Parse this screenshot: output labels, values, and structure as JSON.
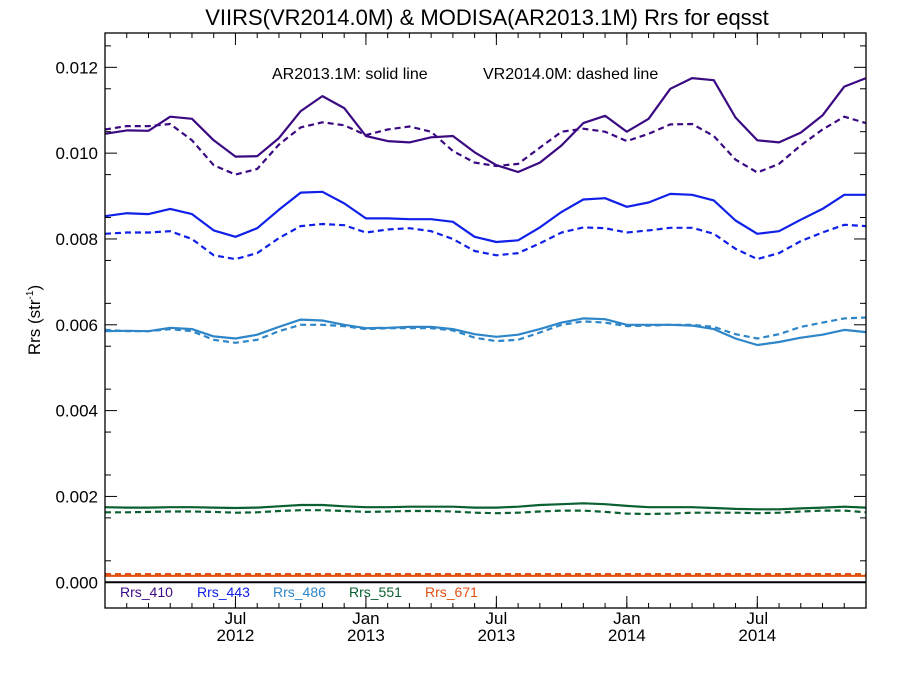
{
  "chart_data": {
    "type": "line",
    "title": "VIIRS(VR2014.0M) & MODISA(AR2013.1M)  Rrs for eqsst",
    "ylabel_main": "Rrs (str",
    "ylabel_sup": "-1",
    "ylabel_close": ")",
    "annotation_solid": "AR2013.1M: solid line",
    "annotation_dashed": "VR2014.0M: dashed line",
    "x_start": "2012-01",
    "months_step": 1,
    "xlim": [
      "2012-01",
      "2014-12"
    ],
    "ylim": [
      -0.0006,
      0.0128
    ],
    "yticks": [
      {
        "value": 0.0,
        "label": "0.000"
      },
      {
        "value": 0.002,
        "label": "0.002"
      },
      {
        "value": 0.004,
        "label": "0.004"
      },
      {
        "value": 0.006,
        "label": "0.006"
      },
      {
        "value": 0.008,
        "label": "0.008"
      },
      {
        "value": 0.01,
        "label": "0.010"
      },
      {
        "value": 0.012,
        "label": "0.012"
      }
    ],
    "xticks": [
      {
        "date": "2012-07",
        "month": "Jul",
        "year": "2012"
      },
      {
        "date": "2013-01",
        "month": "Jan",
        "year": "2013"
      },
      {
        "date": "2013-07",
        "month": "Jul",
        "year": "2013"
      },
      {
        "date": "2014-01",
        "month": "Jan",
        "year": "2014"
      },
      {
        "date": "2014-07",
        "month": "Jul",
        "year": "2014"
      }
    ],
    "zero_line": true,
    "series": [
      {
        "name": "Rrs_410",
        "color": "#3b0a82",
        "solid": [
          0.01045,
          0.01053,
          0.01052,
          0.01085,
          0.0108,
          0.0103,
          0.00992,
          0.00993,
          0.01035,
          0.01098,
          0.01133,
          0.01105,
          0.0104,
          0.01028,
          0.01025,
          0.01037,
          0.0104,
          0.01002,
          0.00972,
          0.00956,
          0.00978,
          0.01018,
          0.0107,
          0.01087,
          0.0105,
          0.0108,
          0.0115,
          0.01175,
          0.0117,
          0.01083,
          0.0103,
          0.01025,
          0.01048,
          0.01088,
          0.01155,
          0.01175
        ],
        "dashed": [
          0.01055,
          0.01063,
          0.01063,
          0.01068,
          0.0103,
          0.00972,
          0.0095,
          0.00963,
          0.0102,
          0.0106,
          0.01072,
          0.01065,
          0.01042,
          0.01055,
          0.01062,
          0.0105,
          0.01005,
          0.00978,
          0.0097,
          0.00975,
          0.01013,
          0.0105,
          0.01057,
          0.0105,
          0.01028,
          0.01045,
          0.01067,
          0.01068,
          0.0104,
          0.00985,
          0.00955,
          0.00975,
          0.01018,
          0.01055,
          0.01085,
          0.0107
        ]
      },
      {
        "name": "Rrs_443",
        "color": "#1020e8",
        "solid": [
          0.00853,
          0.0086,
          0.00858,
          0.0087,
          0.00858,
          0.0082,
          0.00805,
          0.00825,
          0.00868,
          0.00908,
          0.0091,
          0.00883,
          0.00848,
          0.00848,
          0.00846,
          0.00846,
          0.0084,
          0.00805,
          0.00793,
          0.00797,
          0.00827,
          0.00863,
          0.00892,
          0.00895,
          0.00875,
          0.00885,
          0.00905,
          0.00903,
          0.0089,
          0.00843,
          0.00812,
          0.00818,
          0.00845,
          0.0087,
          0.00903,
          0.00903
        ],
        "dashed": [
          0.00812,
          0.00815,
          0.00815,
          0.00818,
          0.008,
          0.00762,
          0.00753,
          0.00767,
          0.00802,
          0.0083,
          0.00835,
          0.00832,
          0.00815,
          0.00822,
          0.00825,
          0.00818,
          0.008,
          0.00772,
          0.00762,
          0.00767,
          0.0079,
          0.00815,
          0.00827,
          0.00825,
          0.00815,
          0.0082,
          0.00826,
          0.00826,
          0.00812,
          0.00777,
          0.00753,
          0.00767,
          0.00795,
          0.00815,
          0.00833,
          0.0083
        ]
      },
      {
        "name": "Rrs_486",
        "color": "#2e86c8",
        "solid": [
          0.00585,
          0.00586,
          0.00585,
          0.00593,
          0.0059,
          0.00573,
          0.00568,
          0.00577,
          0.00595,
          0.00612,
          0.0061,
          0.006,
          0.00592,
          0.00593,
          0.00595,
          0.00595,
          0.0059,
          0.00578,
          0.00572,
          0.00577,
          0.0059,
          0.00605,
          0.00615,
          0.00613,
          0.006,
          0.006,
          0.006,
          0.00598,
          0.0059,
          0.00568,
          0.00553,
          0.0056,
          0.0057,
          0.00577,
          0.00588,
          0.00583
        ],
        "dashed": [
          0.00588,
          0.00585,
          0.00585,
          0.0059,
          0.00585,
          0.00565,
          0.00558,
          0.00565,
          0.00585,
          0.006,
          0.006,
          0.00597,
          0.0059,
          0.00592,
          0.00592,
          0.00592,
          0.00587,
          0.0057,
          0.00562,
          0.00565,
          0.00582,
          0.006,
          0.00608,
          0.00605,
          0.00597,
          0.00598,
          0.006,
          0.006,
          0.00595,
          0.00578,
          0.00568,
          0.00578,
          0.00595,
          0.00605,
          0.00615,
          0.00617
        ]
      },
      {
        "name": "Rrs_551",
        "color": "#0a6030",
        "solid": [
          0.00175,
          0.00174,
          0.00174,
          0.00175,
          0.00175,
          0.00174,
          0.00173,
          0.00174,
          0.00177,
          0.0018,
          0.0018,
          0.00177,
          0.00175,
          0.00175,
          0.00176,
          0.00176,
          0.00176,
          0.00174,
          0.00174,
          0.00176,
          0.0018,
          0.00182,
          0.00184,
          0.00182,
          0.00178,
          0.00175,
          0.00175,
          0.00175,
          0.00173,
          0.00171,
          0.0017,
          0.0017,
          0.00172,
          0.00174,
          0.00176,
          0.00174
        ],
        "dashed": [
          0.00163,
          0.00163,
          0.00164,
          0.00165,
          0.00165,
          0.00164,
          0.00162,
          0.00163,
          0.00166,
          0.00168,
          0.00168,
          0.00166,
          0.00164,
          0.00165,
          0.00166,
          0.00166,
          0.00165,
          0.00162,
          0.00161,
          0.00162,
          0.00165,
          0.00167,
          0.00167,
          0.00164,
          0.0016,
          0.00159,
          0.0016,
          0.00162,
          0.00162,
          0.00162,
          0.00161,
          0.00162,
          0.00165,
          0.00167,
          0.00167,
          0.00163
        ]
      },
      {
        "name": "Rrs_671",
        "color": "#e05010",
        "solid": [
          0.00015,
          0.00015,
          0.00015,
          0.00015,
          0.00015,
          0.00015,
          0.00015,
          0.00015,
          0.00015,
          0.00015,
          0.00015,
          0.00015,
          0.00015,
          0.00015,
          0.00015,
          0.00015,
          0.00015,
          0.00015,
          0.00015,
          0.00015,
          0.00015,
          0.00015,
          0.00015,
          0.00015,
          0.00015,
          0.00015,
          0.00015,
          0.00015,
          0.00015,
          0.00015,
          0.00015,
          0.00015,
          0.00015,
          0.00015,
          0.00015,
          0.00015
        ],
        "dashed": [
          0.00019,
          0.00019,
          0.00019,
          0.00019,
          0.00019,
          0.00019,
          0.00019,
          0.00019,
          0.00019,
          0.00019,
          0.00019,
          0.00019,
          0.00019,
          0.00019,
          0.00019,
          0.00019,
          0.00019,
          0.00019,
          0.00019,
          0.00019,
          0.00019,
          0.00019,
          0.00019,
          0.00019,
          0.00019,
          0.00019,
          0.00019,
          0.00019,
          0.00019,
          0.00019,
          0.00019,
          0.00019,
          0.00019,
          0.00019,
          0.00019,
          0.00019
        ]
      }
    ]
  }
}
